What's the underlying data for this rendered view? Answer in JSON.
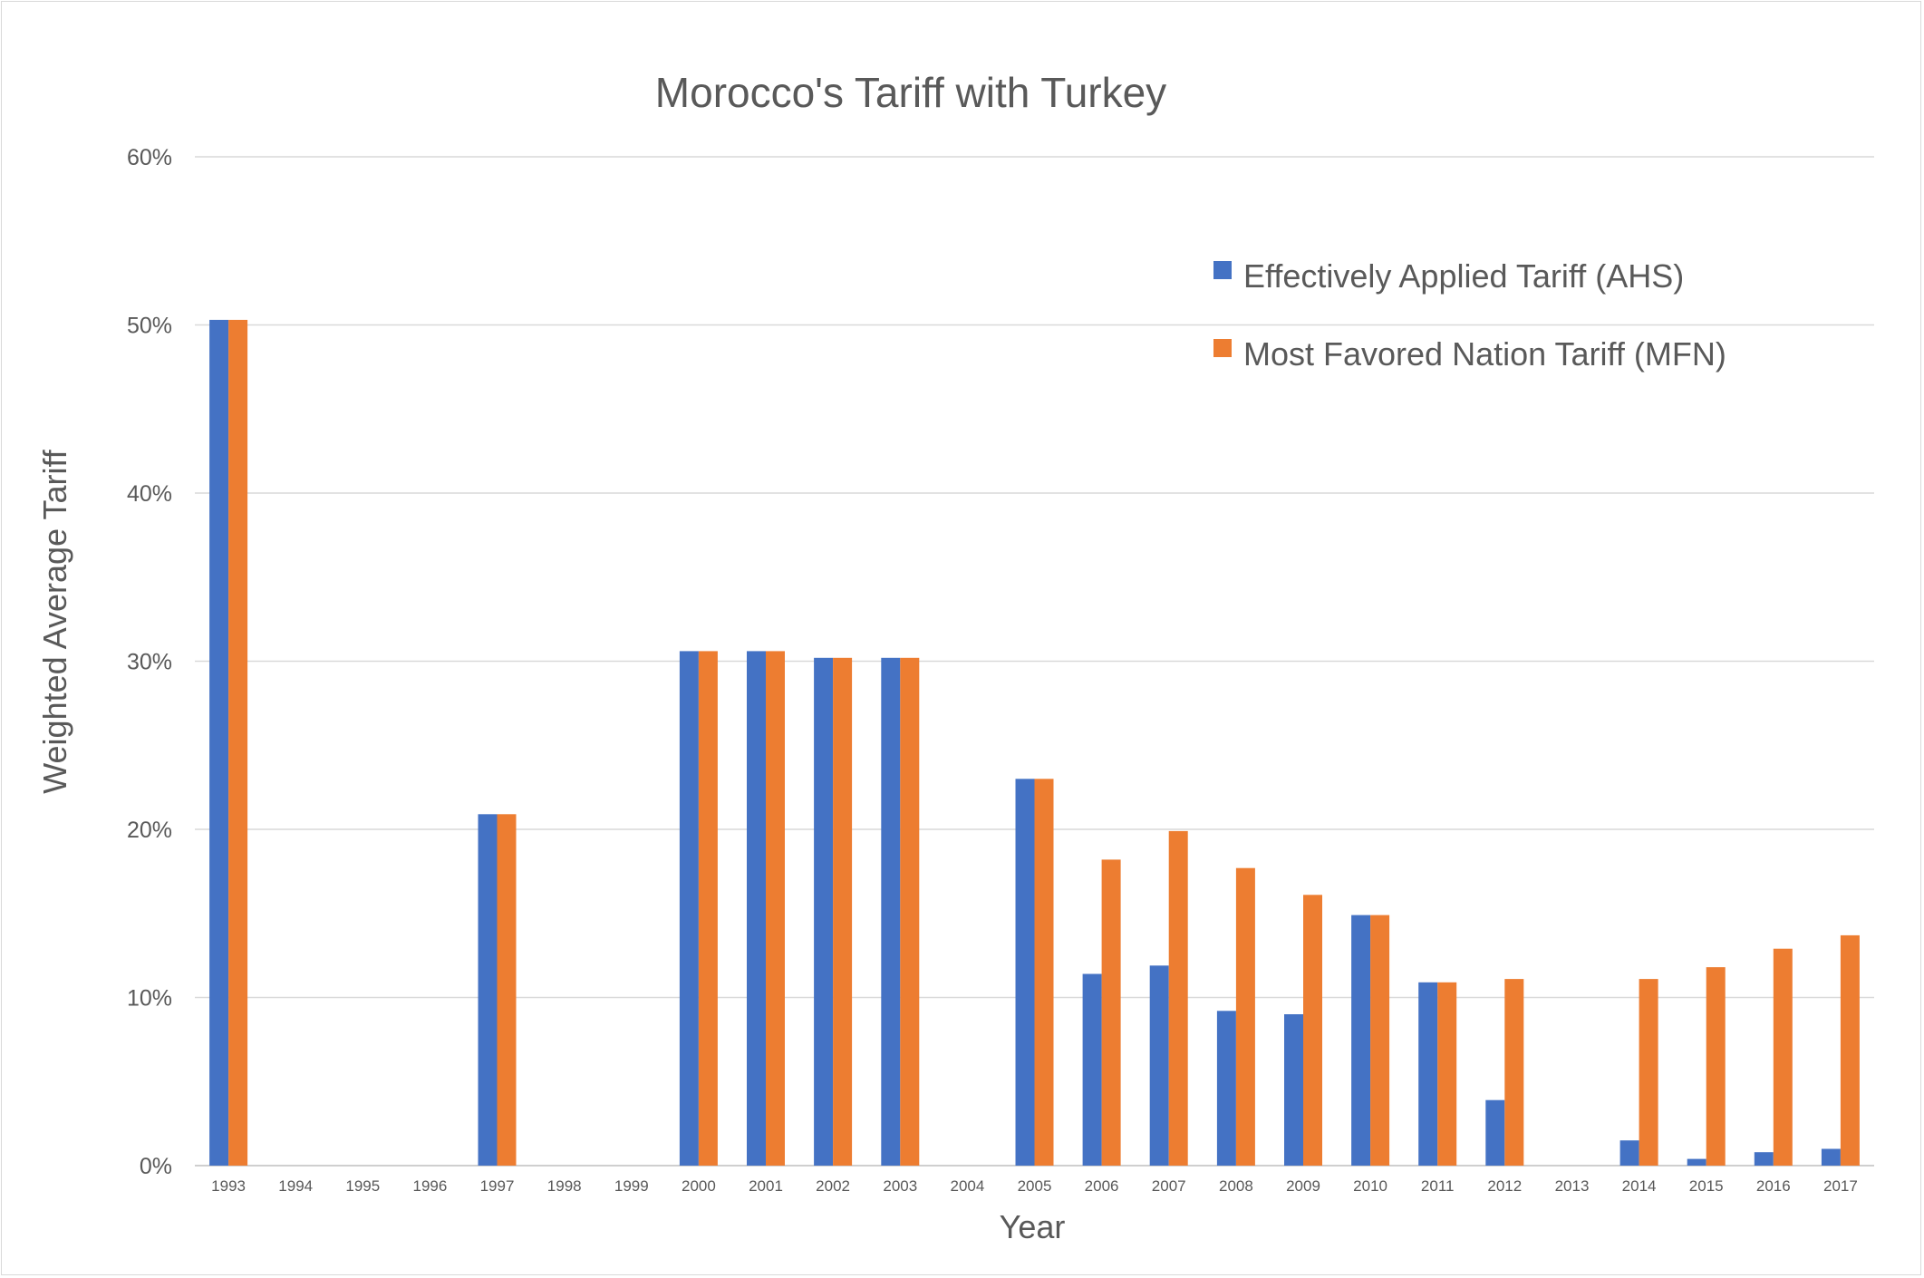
{
  "chart_data": {
    "type": "bar",
    "title": "Morocco's Tariff with Turkey",
    "xlabel": "Year",
    "ylabel": "Weighted Average Tariff",
    "ylim": [
      0,
      60
    ],
    "y_ticks": [
      "0%",
      "10%",
      "20%",
      "30%",
      "40%",
      "50%",
      "60%"
    ],
    "grid": true,
    "legend_position": "top-right",
    "categories": [
      "1993",
      "1994",
      "1995",
      "1996",
      "1997",
      "1998",
      "1999",
      "2000",
      "2001",
      "2002",
      "2003",
      "2004",
      "2005",
      "2006",
      "2007",
      "2008",
      "2009",
      "2010",
      "2011",
      "2012",
      "2013",
      "2014",
      "2015",
      "2016",
      "2017"
    ],
    "series": [
      {
        "name": "Effectively Applied Tariff (AHS)",
        "color": "#4472c4",
        "values": [
          50.3,
          null,
          null,
          null,
          20.9,
          null,
          null,
          30.6,
          30.6,
          30.2,
          30.2,
          null,
          23.0,
          11.4,
          11.9,
          9.2,
          9.0,
          14.9,
          10.9,
          3.9,
          null,
          1.5,
          0.4,
          0.8,
          1.0
        ]
      },
      {
        "name": "Most Favored Nation Tariff (MFN)",
        "color": "#ed7d31",
        "values": [
          50.3,
          null,
          null,
          null,
          20.9,
          null,
          null,
          30.6,
          30.6,
          30.2,
          30.2,
          null,
          23.0,
          18.2,
          19.9,
          17.7,
          16.1,
          14.9,
          10.9,
          11.1,
          null,
          11.1,
          11.8,
          12.9,
          13.7
        ]
      }
    ]
  }
}
